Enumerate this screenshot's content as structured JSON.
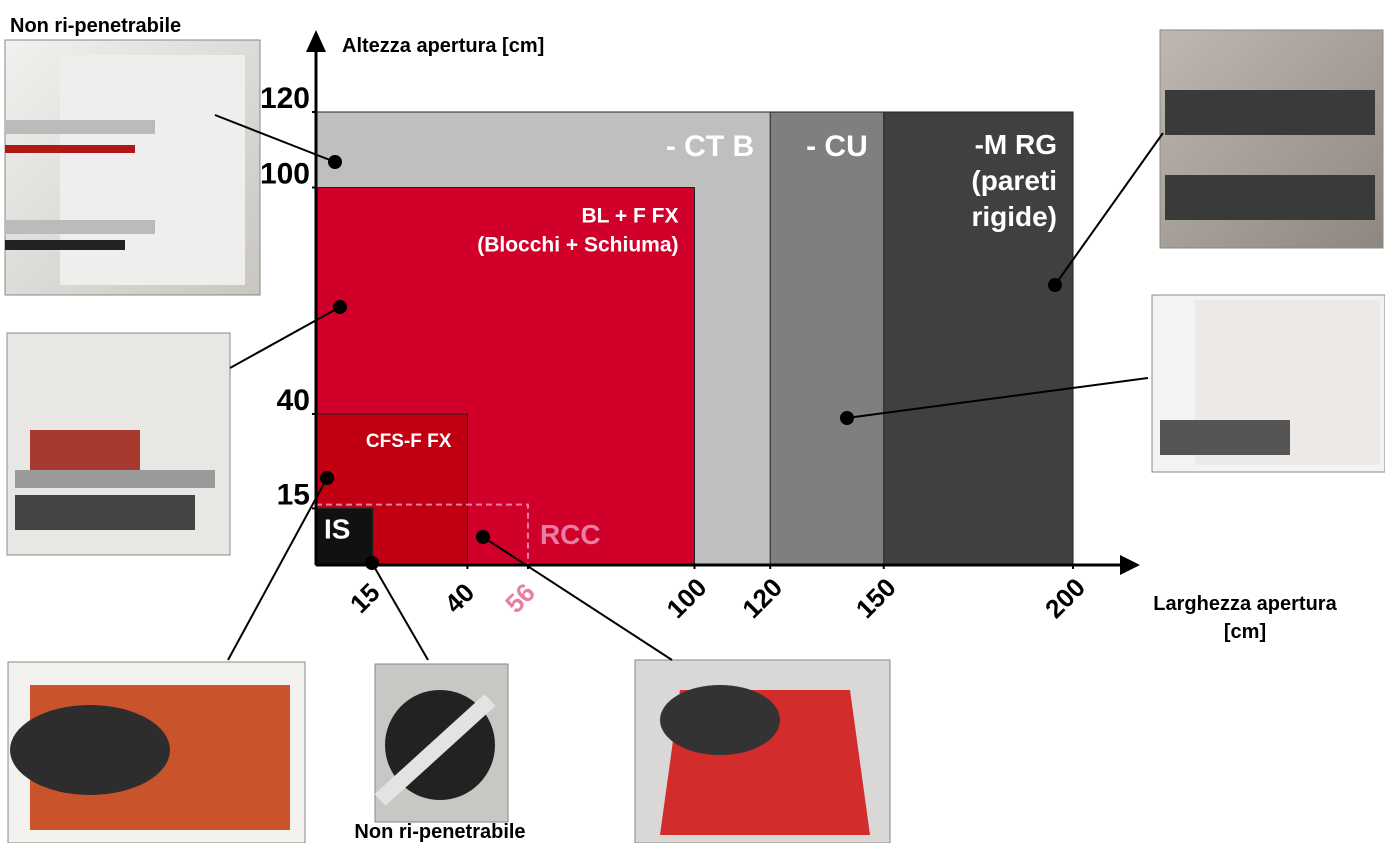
{
  "chart_data": {
    "type": "region",
    "ylabel": "Altezza apertura [cm]",
    "xlabel_lines": [
      "Larghezza apertura",
      "[cm]"
    ],
    "xlim": [
      0,
      200
    ],
    "ylim": [
      0,
      120
    ],
    "xticks": [
      15,
      40,
      56,
      100,
      120,
      150,
      200
    ],
    "yticks": [
      15,
      40,
      100,
      120
    ],
    "regions": [
      {
        "label_lines": [
          "-M RG",
          "(pareti",
          "rigide)"
        ],
        "width": 200,
        "height": 120,
        "color": "#404040",
        "text_color": "#ffffff"
      },
      {
        "label_lines": [
          "- CU"
        ],
        "width": 150,
        "height": 120,
        "color": "#7f7f7f",
        "text_color": "#ffffff"
      },
      {
        "label_lines": [
          "- CT B"
        ],
        "width": 120,
        "height": 120,
        "color": "#bfbfbf",
        "text_color": "#ffffff"
      },
      {
        "label_lines": [
          "BL + F FX",
          "(Blocchi + Schiuma)"
        ],
        "width": 100,
        "height": 100,
        "color": "#d0002a",
        "text_color": "#ffffff"
      },
      {
        "label_lines": [
          "CFS-F FX"
        ],
        "width": 40,
        "height": 40,
        "color": "#c00012",
        "text_color": "#ffffff"
      },
      {
        "label_lines": [
          "RCC"
        ],
        "width": 56,
        "height": 16,
        "color": "none",
        "text_color": "#e57fa4",
        "dashed": true
      },
      {
        "label_lines": [
          "IS"
        ],
        "width": 15,
        "height": 15,
        "color": "#111111",
        "text_color": "#ffffff"
      }
    ],
    "annotations": [
      "Non ri-penetrabile",
      "Non ri-penetrabile"
    ]
  }
}
